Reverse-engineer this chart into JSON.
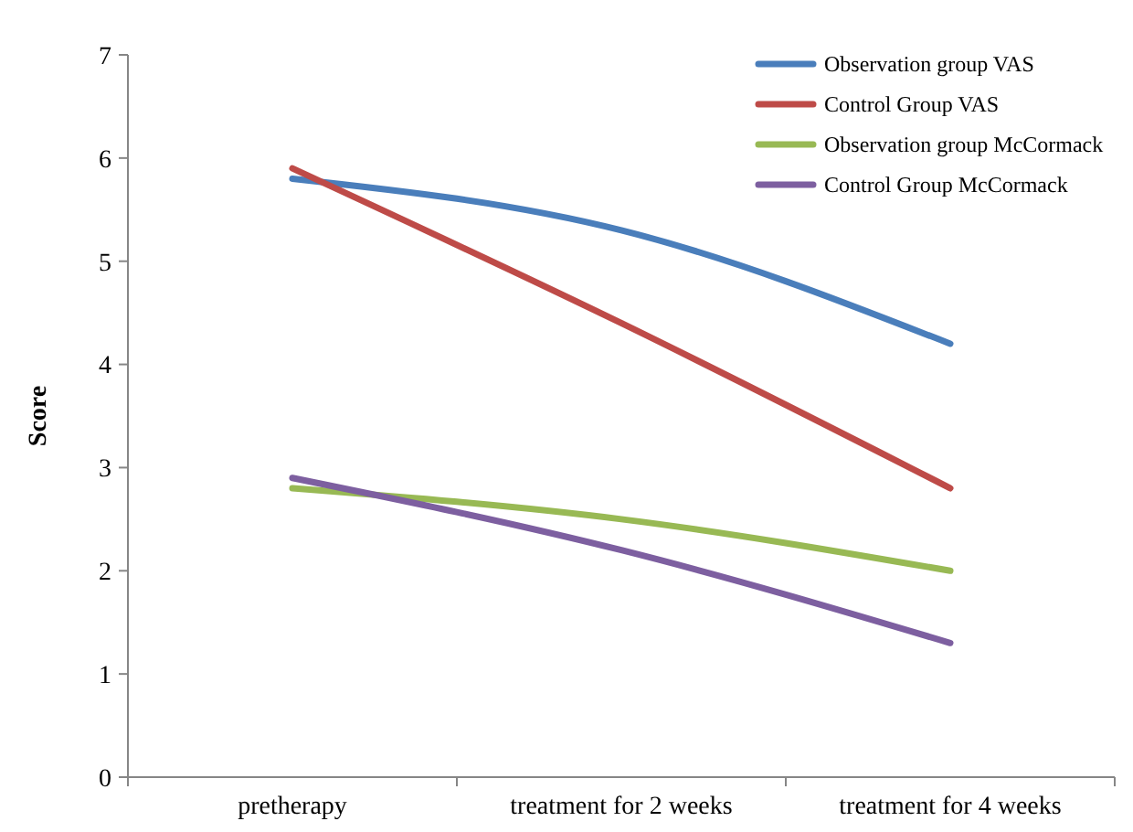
{
  "chart_data": {
    "type": "line",
    "ylabel": "Score",
    "categories": [
      "pretherapy",
      "treatment for 2 weeks",
      "treatment for 4 weeks"
    ],
    "series": [
      {
        "name": "Observation group VAS",
        "color": "#4a7ebb",
        "values": [
          5.8,
          5.3,
          4.2
        ]
      },
      {
        "name": "Control Group VAS",
        "color": "#be4b48",
        "values": [
          5.9,
          4.4,
          2.8
        ]
      },
      {
        "name": "Observation group McCormack",
        "color": "#98b954",
        "values": [
          2.8,
          2.5,
          2.0
        ]
      },
      {
        "name": "Control Group McCormack",
        "color": "#7d5fa0",
        "values": [
          2.9,
          2.2,
          1.3
        ]
      }
    ],
    "ylim": [
      0,
      7
    ],
    "yticks": [
      0,
      1,
      2,
      3,
      4,
      5,
      6,
      7
    ],
    "grid": false,
    "legend": "top right",
    "marker": "none",
    "line_style": "solid"
  }
}
